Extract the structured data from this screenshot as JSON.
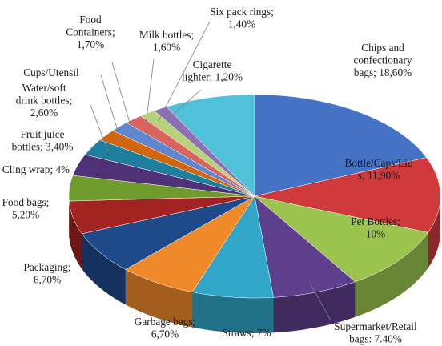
{
  "chart_data": {
    "type": "pie",
    "style": "3d",
    "title": "",
    "slices": [
      {
        "label": "Chips and confectionary bags; 18,60%",
        "value": 18.6,
        "color": "#4472c4"
      },
      {
        "label": "Bottle/Caps/Lids; 11,90%",
        "value": 11.9,
        "color": "#d03a3a"
      },
      {
        "label": "Pet Bottles; 10%",
        "value": 10.0,
        "color": "#9bc44f"
      },
      {
        "label": "Supermarket/Retail bags; 7,40%",
        "value": 7.4,
        "color": "#5e3f8c"
      },
      {
        "label": "Straws; 7%",
        "value": 7.0,
        "color": "#31a6c8"
      },
      {
        "label": "Garbage bags; 6,70%",
        "value": 6.7,
        "color": "#f0892a"
      },
      {
        "label": "Packaging; 6,70%",
        "value": 6.7,
        "color": "#1f4a8a"
      },
      {
        "label": "Food bags; 5,20%",
        "value": 5.2,
        "color": "#a32222"
      },
      {
        "label": "Cling wrap; 4%",
        "value": 4.0,
        "color": "#6f9a2c"
      },
      {
        "label": "Fruit juice bottles; 3,40%",
        "value": 3.4,
        "color": "#4e3177"
      },
      {
        "label": "Water/soft drink bottles; 2,60%",
        "value": 2.6,
        "color": "#1d7f9b"
      },
      {
        "label": "Cups/Utensil",
        "value": 1.8,
        "color": "#d1660f"
      },
      {
        "label": "Food Containers; 1,70%",
        "value": 1.7,
        "color": "#5f86cf"
      },
      {
        "label": "Milk bottles; 1,60%",
        "value": 1.6,
        "color": "#d9635f"
      },
      {
        "label": "Six pack rings; 1,40%",
        "value": 1.4,
        "color": "#b3d27a"
      },
      {
        "label": "Cigarette lighter; 1,20%",
        "value": 1.2,
        "color": "#8c6fb5"
      },
      {
        "label": "",
        "value": 7.8,
        "color": "#4fc1d9"
      }
    ]
  },
  "labels": [
    {
      "lines": [
        "Chips and",
        "confectionary",
        "bags; 18,60%"
      ]
    },
    {
      "lines": [
        "Bottle/Caps/Lid",
        "s; 11,90%"
      ]
    },
    {
      "lines": [
        "Pet Bottles;",
        "10%"
      ]
    },
    {
      "lines": [
        "Supermarket/Retail",
        "bags: 7.40%"
      ]
    },
    {
      "lines": [
        "Straws; 7%"
      ]
    },
    {
      "lines": [
        "Garbage bags;",
        "6,70%"
      ]
    },
    {
      "lines": [
        "Packaging;",
        "6,70%"
      ]
    },
    {
      "lines": [
        "Food bags;",
        "5,20%"
      ]
    },
    {
      "lines": [
        "Cling wrap; 4%"
      ]
    },
    {
      "lines": [
        "Fruit juice",
        "bottles; 3,40%"
      ]
    },
    {
      "lines": [
        "Water/soft",
        "drink bottles;",
        "2,60%"
      ]
    },
    {
      "lines": [
        "Cups/Utensil"
      ]
    },
    {
      "lines": [
        "Food",
        "Containers;",
        "1,70%"
      ]
    },
    {
      "lines": [
        "Milk bottles;",
        "1,60%"
      ]
    },
    {
      "lines": [
        "Six pack rings;",
        "1,40%"
      ]
    },
    {
      "lines": [
        "Cigarette",
        "lighter; 1,20%"
      ]
    }
  ]
}
